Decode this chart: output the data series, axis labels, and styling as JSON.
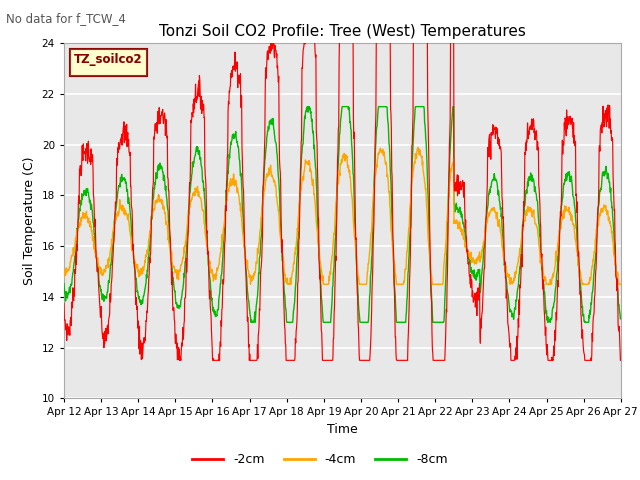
{
  "title": "Tonzi Soil CO2 Profile: Tree (West) Temperatures",
  "subtitle": "No data for f_TCW_4",
  "ylabel": "Soil Temperature (C)",
  "xlabel": "Time",
  "legend_title": "TZ_soilco2",
  "legend_entries": [
    "-2cm",
    "-4cm",
    "-8cm"
  ],
  "line_colors": [
    "#ff0000",
    "#ffa500",
    "#00bb00"
  ],
  "ylim": [
    10,
    24
  ],
  "yticks": [
    10,
    12,
    14,
    16,
    18,
    20,
    22,
    24
  ],
  "xtick_labels": [
    "Apr 12",
    "Apr 13",
    "Apr 14",
    "Apr 15",
    "Apr 16",
    "Apr 17",
    "Apr 18",
    "Apr 19",
    "Apr 20",
    "Apr 21",
    "Apr 22",
    "Apr 23",
    "Apr 24",
    "Apr 25",
    "Apr 26",
    "Apr 27"
  ],
  "bg_color": "#e8e8e8",
  "days": 15
}
